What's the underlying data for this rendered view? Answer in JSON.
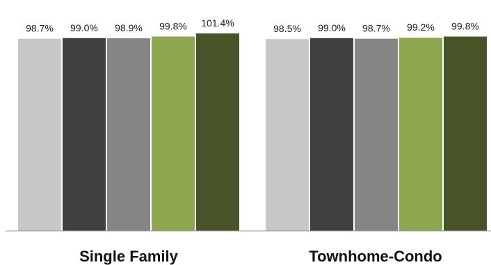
{
  "chart_data": {
    "type": "bar",
    "categories": [
      "Single Family",
      "Townhome-Condo"
    ],
    "series": [
      {
        "values": [
          98.7,
          98.5
        ],
        "labels": [
          "98.7%",
          "98.5%"
        ],
        "color": "#c8c8c8"
      },
      {
        "values": [
          99.0,
          99.0
        ],
        "labels": [
          "99.0%",
          "99.0%"
        ],
        "color": "#404040"
      },
      {
        "values": [
          98.9,
          98.7
        ],
        "labels": [
          "98.9%",
          "98.7%"
        ],
        "color": "#858585"
      },
      {
        "values": [
          99.8,
          99.2
        ],
        "labels": [
          "99.8%",
          "99.2%"
        ],
        "color": "#8da64f"
      },
      {
        "values": [
          101.4,
          99.8
        ],
        "labels": [
          "101.4%",
          "99.8%"
        ],
        "color": "#475427"
      }
    ],
    "ylim": [
      0,
      110
    ],
    "grid": false,
    "legend": "none",
    "value_suffix": "%"
  }
}
